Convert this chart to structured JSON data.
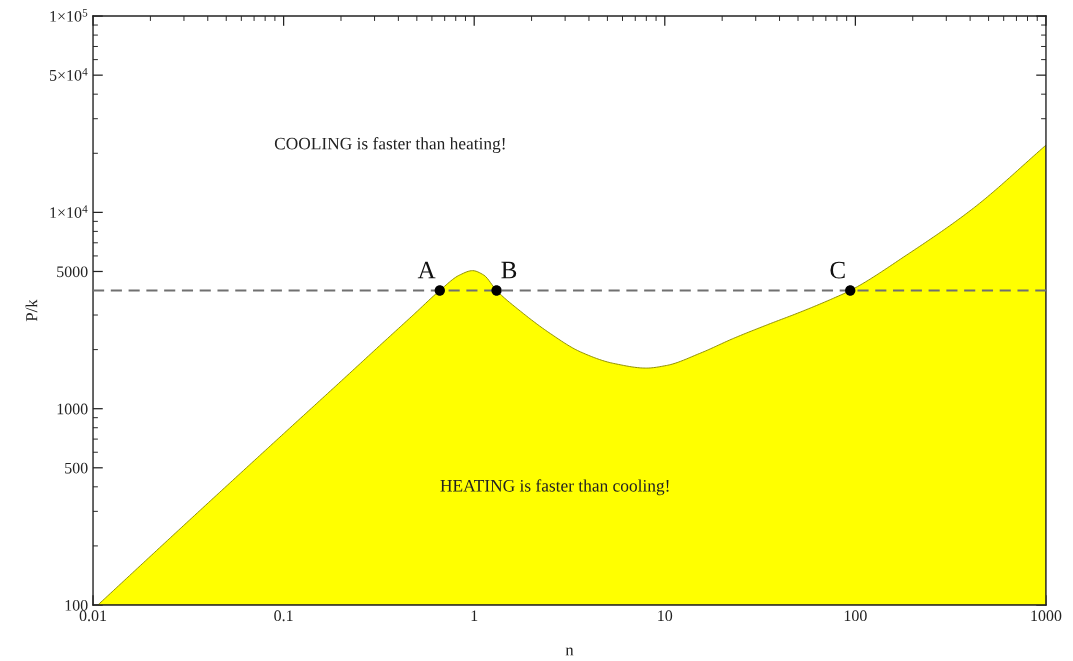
{
  "chart_data": {
    "type": "area",
    "xlabel": "n",
    "ylabel": "P/k",
    "log": "xy",
    "xlim": [
      0.01,
      1000
    ],
    "ylim": [
      100,
      100000
    ],
    "xticks": [
      0.01,
      0.1,
      1,
      10,
      100,
      1000
    ],
    "yticks": [
      100,
      500,
      1000,
      5000,
      {
        "value": 10000,
        "label": "1×10$^{4}$"
      },
      {
        "value": 50000,
        "label": "5×10$^{4}$"
      },
      {
        "value": 100000,
        "label": "1×10$^{5}$"
      }
    ],
    "grid": false,
    "legend": false,
    "series": [
      {
        "color": "#ffff00",
        "x": [
          0.0106,
          0.03,
          0.1,
          0.2,
          0.32,
          0.48,
          0.66,
          0.84,
          0.98,
          1.12,
          1.31,
          1.74,
          2.5,
          3.6,
          5.4,
          8.0,
          10.2,
          15.3,
          22.9,
          34.3,
          51.2,
          76.6,
          94,
          186,
          416,
          1000
        ],
        "values": [
          100,
          255,
          746,
          1380,
          2100,
          3010,
          4000,
          4800,
          5050,
          4800,
          4000,
          3150,
          2420,
          1950,
          1700,
          1610,
          1660,
          1915,
          2280,
          2670,
          3100,
          3650,
          4000,
          6070,
          10500,
          22000
        ]
      },
      {
        "type": "scatter",
        "color": "#000000",
        "marker": "circle",
        "x": [
          0.66,
          1.31,
          94
        ],
        "values": [
          4000,
          4000,
          4000
        ]
      }
    ],
    "ref_lines": [
      {
        "axis": "y",
        "value": 4000,
        "color": "#707070",
        "line_style": "dashed"
      }
    ],
    "annotations": [
      {
        "text": "A",
        "x": 0.66,
        "y": 4000
      },
      {
        "text": "B",
        "x": 1.31,
        "y": 4000
      },
      {
        "text": "C",
        "x": 94,
        "y": 4000
      },
      "COOLING is faster than heating!",
      "HEATING is faster than cooling!"
    ]
  }
}
